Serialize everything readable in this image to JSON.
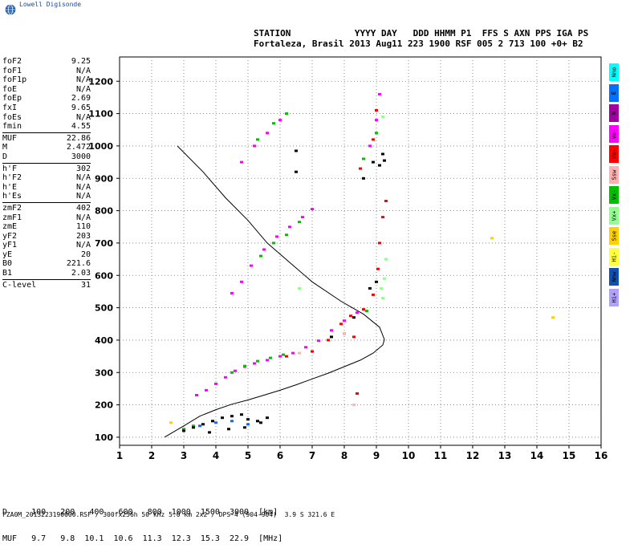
{
  "brand": {
    "name": "Lowell Digisonde"
  },
  "header": {
    "line1": "STATION            YYYY DAY   DDD HHMM P1  FFS S AXN PPS IGA PS",
    "line2": "Fortaleza, Brasil 2013 Aug11 223 1900 RSF 005 2 713 100 +0+ B2"
  },
  "params": {
    "groups": [
      [
        [
          "foF2",
          "9.25"
        ],
        [
          "foF1",
          "N/A"
        ],
        [
          "foF1p",
          "N/A"
        ],
        [
          "foE",
          "N/A"
        ],
        [
          "foEp",
          "2.69"
        ],
        [
          "fxI",
          "9.65"
        ],
        [
          "foEs",
          "N/A"
        ],
        [
          "fmin",
          "4.55"
        ]
      ],
      [
        [
          "MUF",
          "22.86"
        ],
        [
          "M",
          "2.472"
        ],
        [
          "D",
          "3000"
        ]
      ],
      [
        [
          "h'F",
          "302"
        ],
        [
          "h'F2",
          "N/A"
        ],
        [
          "h'E",
          "N/A"
        ],
        [
          "h'Es",
          "N/A"
        ]
      ],
      [
        [
          "zmF2",
          "402"
        ],
        [
          "zmF1",
          "N/A"
        ],
        [
          "zmE",
          "110"
        ],
        [
          "yF2",
          "203"
        ],
        [
          "yF1",
          "N/A"
        ],
        [
          "yE",
          "20"
        ],
        [
          "B0",
          "221.6"
        ],
        [
          "B1",
          "2.03"
        ]
      ],
      [
        [
          "C-level",
          "31"
        ]
      ]
    ]
  },
  "legend": [
    {
      "label": "Nno",
      "color": "#00ffff"
    },
    {
      "label": "E",
      "color": "#0070ff"
    },
    {
      "label": "W",
      "color": "#a000a0"
    },
    {
      "label": "Vo-",
      "color": "#ff00ff"
    },
    {
      "label": "Vo+",
      "color": "#ff0000"
    },
    {
      "label": "Ssw",
      "color": "#ffb0b0"
    },
    {
      "label": "Vx-",
      "color": "#00c000"
    },
    {
      "label": "Vx+",
      "color": "#90ff90"
    },
    {
      "label": "Sse",
      "color": "#ffd000"
    },
    {
      "label": "Hi-",
      "color": "#ffff40"
    },
    {
      "label": "Nnw",
      "color": "#1050b0"
    },
    {
      "label": "Hi+",
      "color": "#b0a0ff"
    }
  ],
  "dmuf": {
    "d_line": "D     100   200   400   600   800  1000  1500  3000  [km]",
    "muf_line": "MUF   9.7   9.8  10.1  10.6  11.3  12.3  15.3  22.9  [MHz]"
  },
  "footer": "FZA0M_2013223190000.RSF / 300fx256h 50 kHz 5.0 km 2x2 / DPS-4 (904-904)  3.9 S 321.6 E",
  "chart_data": {
    "type": "scatter",
    "title": "",
    "xlabel": "",
    "ylabel": "",
    "xlim": [
      1,
      16
    ],
    "ylim": [
      75,
      1275
    ],
    "xticks": [
      1,
      2,
      3,
      4,
      5,
      6,
      7,
      8,
      9,
      10,
      11,
      12,
      13,
      14,
      15,
      16
    ],
    "yticks": [
      100,
      200,
      300,
      400,
      500,
      600,
      700,
      800,
      900,
      1000,
      1100,
      1200
    ],
    "grid": true,
    "series": [
      {
        "color": "#ff00ff",
        "points": [
          [
            3.4,
            230
          ],
          [
            3.7,
            245
          ],
          [
            4.0,
            265
          ],
          [
            4.3,
            285
          ],
          [
            4.6,
            305
          ],
          [
            4.9,
            318
          ],
          [
            5.2,
            328
          ],
          [
            5.6,
            338
          ],
          [
            6.0,
            350
          ],
          [
            6.4,
            360
          ],
          [
            6.8,
            378
          ],
          [
            7.2,
            398
          ],
          [
            7.6,
            430
          ],
          [
            8.0,
            460
          ],
          [
            8.4,
            485
          ],
          [
            4.5,
            545
          ],
          [
            4.8,
            580
          ],
          [
            5.1,
            630
          ],
          [
            5.5,
            680
          ],
          [
            5.9,
            720
          ],
          [
            6.3,
            750
          ],
          [
            6.7,
            780
          ],
          [
            7.0,
            805
          ],
          [
            4.8,
            950
          ],
          [
            5.2,
            1000
          ],
          [
            5.6,
            1040
          ],
          [
            6.0,
            1080
          ],
          [
            8.8,
            1000
          ],
          [
            9.0,
            1080
          ],
          [
            9.1,
            1160
          ]
        ]
      },
      {
        "color": "#ff0000",
        "points": [
          [
            7.0,
            365
          ],
          [
            7.5,
            400
          ],
          [
            7.9,
            450
          ],
          [
            8.2,
            475
          ],
          [
            8.6,
            495
          ],
          [
            8.9,
            540
          ],
          [
            9.05,
            620
          ],
          [
            9.1,
            700
          ],
          [
            9.2,
            780
          ],
          [
            9.3,
            830
          ],
          [
            6.2,
            350
          ],
          [
            8.4,
            235
          ],
          [
            8.5,
            930
          ],
          [
            8.9,
            1020
          ],
          [
            9.0,
            1110
          ],
          [
            8.3,
            410
          ]
        ]
      },
      {
        "color": "#00c000",
        "points": [
          [
            4.5,
            300
          ],
          [
            4.9,
            320
          ],
          [
            5.3,
            335
          ],
          [
            5.7,
            345
          ],
          [
            6.1,
            355
          ],
          [
            5.4,
            660
          ],
          [
            5.8,
            700
          ],
          [
            6.2,
            725
          ],
          [
            6.6,
            765
          ],
          [
            5.3,
            1020
          ],
          [
            5.8,
            1070
          ],
          [
            6.2,
            1100
          ],
          [
            3.0,
            125
          ],
          [
            3.3,
            135
          ],
          [
            8.7,
            490
          ],
          [
            8.6,
            960
          ],
          [
            9.0,
            1040
          ]
        ]
      },
      {
        "color": "#90ff90",
        "points": [
          [
            9.2,
            530
          ],
          [
            9.25,
            590
          ],
          [
            9.3,
            650
          ],
          [
            9.15,
            560
          ],
          [
            9.2,
            1090
          ],
          [
            6.6,
            560
          ]
        ]
      },
      {
        "color": "#000000",
        "points": [
          [
            3.0,
            120
          ],
          [
            3.3,
            130
          ],
          [
            3.6,
            140
          ],
          [
            3.9,
            150
          ],
          [
            4.2,
            160
          ],
          [
            4.5,
            165
          ],
          [
            4.8,
            170
          ],
          [
            5.0,
            155
          ],
          [
            5.3,
            150
          ],
          [
            5.6,
            160
          ],
          [
            3.8,
            115
          ],
          [
            4.4,
            125
          ],
          [
            4.9,
            130
          ],
          [
            5.4,
            145
          ],
          [
            7.6,
            410
          ],
          [
            8.0,
            420
          ],
          [
            8.3,
            470
          ],
          [
            8.6,
            900
          ],
          [
            9.1,
            940
          ],
          [
            9.2,
            975
          ],
          [
            9.25,
            955
          ],
          [
            6.5,
            920
          ],
          [
            6.5,
            985
          ],
          [
            8.9,
            950
          ],
          [
            9.0,
            580
          ],
          [
            8.8,
            560
          ]
        ]
      },
      {
        "color": "#0070ff",
        "points": [
          [
            3.5,
            135
          ],
          [
            4.0,
            145
          ],
          [
            4.5,
            150
          ],
          [
            5.0,
            140
          ]
        ]
      },
      {
        "color": "#ffd000",
        "points": [
          [
            2.6,
            145
          ],
          [
            12.6,
            715
          ],
          [
            14.5,
            470
          ]
        ]
      },
      {
        "color": "#ffb0b0",
        "points": [
          [
            6.6,
            360
          ],
          [
            8.0,
            420
          ],
          [
            8.3,
            200
          ]
        ]
      }
    ],
    "profile": {
      "color": "#000000",
      "points": [
        [
          2.4,
          100
        ],
        [
          3.0,
          135
        ],
        [
          3.5,
          165
        ],
        [
          4.0,
          185
        ],
        [
          4.5,
          202
        ],
        [
          5.0,
          215
        ],
        [
          5.5,
          230
        ],
        [
          6.0,
          245
        ],
        [
          6.5,
          262
        ],
        [
          7.0,
          280
        ],
        [
          7.5,
          298
        ],
        [
          8.0,
          318
        ],
        [
          8.5,
          338
        ],
        [
          8.9,
          360
        ],
        [
          9.2,
          385
        ],
        [
          9.25,
          402
        ],
        [
          9.1,
          440
        ],
        [
          8.6,
          480
        ],
        [
          7.9,
          520
        ],
        [
          7.0,
          580
        ],
        [
          6.3,
          640
        ],
        [
          5.6,
          700
        ],
        [
          5.0,
          770
        ],
        [
          4.3,
          840
        ],
        [
          3.6,
          920
        ],
        [
          2.8,
          1000
        ]
      ]
    }
  }
}
